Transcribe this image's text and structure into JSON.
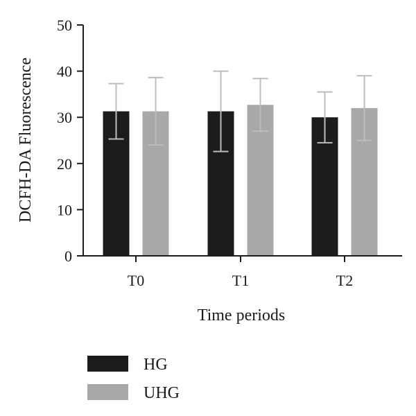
{
  "chart_data": {
    "type": "bar",
    "categories": [
      "T0",
      "T1",
      "T2"
    ],
    "series": [
      {
        "name": "HG",
        "color": "#1c1c1c",
        "values": [
          31.3,
          31.3,
          30.0
        ],
        "errors": [
          6.0,
          8.7,
          5.5
        ]
      },
      {
        "name": "UHG",
        "color": "#a8a8a8",
        "values": [
          31.3,
          32.7,
          32.0
        ],
        "errors": [
          7.3,
          5.7,
          7.0
        ]
      }
    ],
    "xlabel": "Time periods",
    "ylabel": "DCFH-DA Fluorescence",
    "ylim": [
      0,
      50
    ],
    "yticks": [
      0,
      10,
      20,
      30,
      40,
      50
    ],
    "error_bar_color": "#bdbdbd",
    "legend_position": "bottom-left",
    "grid": false
  }
}
